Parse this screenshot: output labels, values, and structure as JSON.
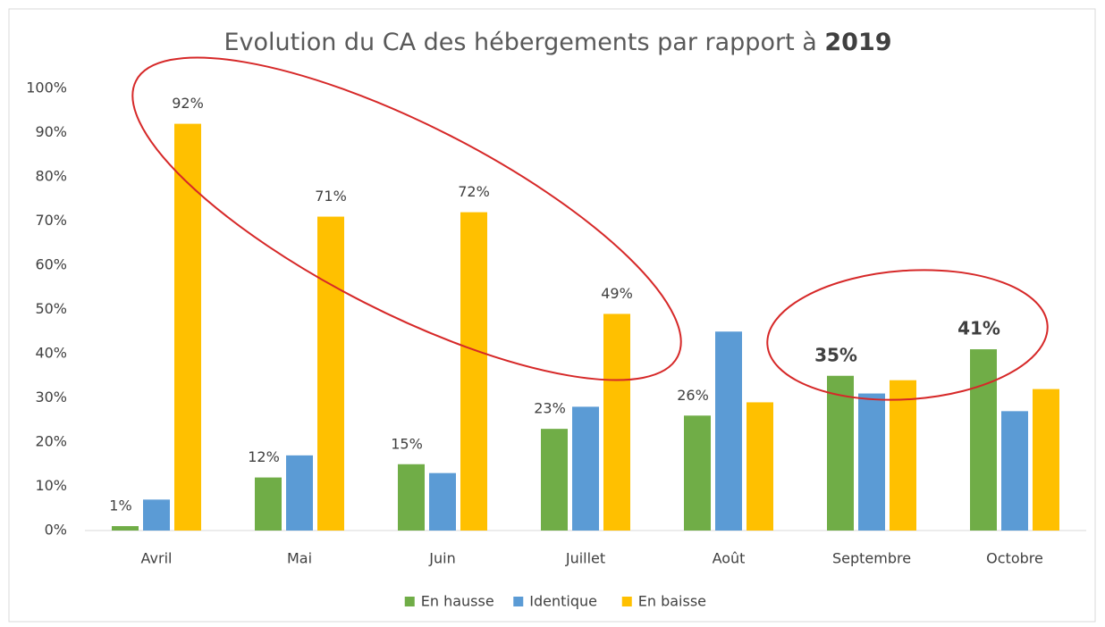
{
  "chart_data": {
    "type": "bar",
    "title": "Evolution du CA des hébergements par rapport à",
    "title_bold": "2019",
    "categories": [
      "Avril",
      "Mai",
      "Juin",
      "Juillet",
      "Août",
      "Septembre",
      "Octobre"
    ],
    "series": [
      {
        "name": "En hausse",
        "color": "#70ad47",
        "values": [
          1,
          12,
          15,
          23,
          26,
          35,
          41
        ],
        "value_labels": [
          "1%",
          "12%",
          "15%",
          "23%",
          "26%",
          "35%",
          "41%"
        ]
      },
      {
        "name": "Identique",
        "color": "#5b9bd5",
        "values": [
          7,
          17,
          13,
          28,
          45,
          31,
          27
        ]
      },
      {
        "name": "En baisse",
        "color": "#ffc000",
        "values": [
          92,
          71,
          72,
          49,
          29,
          34,
          32
        ],
        "value_labels": [
          "92%",
          "71%",
          "72%",
          "49%",
          null,
          null,
          null
        ]
      }
    ],
    "ylim": [
      0,
      100
    ],
    "yticks": [
      {
        "value": 0,
        "label": "0%"
      },
      {
        "value": 10,
        "label": "10%"
      },
      {
        "value": 20,
        "label": "20%"
      },
      {
        "value": 30,
        "label": "30%"
      },
      {
        "value": 40,
        "label": "40%"
      },
      {
        "value": 50,
        "label": "50%"
      },
      {
        "value": 60,
        "label": "60%"
      },
      {
        "value": 70,
        "label": "70%"
      },
      {
        "value": 80,
        "label": "80%"
      },
      {
        "value": 90,
        "label": "90%"
      },
      {
        "value": 100,
        "label": "100%"
      }
    ],
    "grid": false,
    "legend": "bottom"
  }
}
